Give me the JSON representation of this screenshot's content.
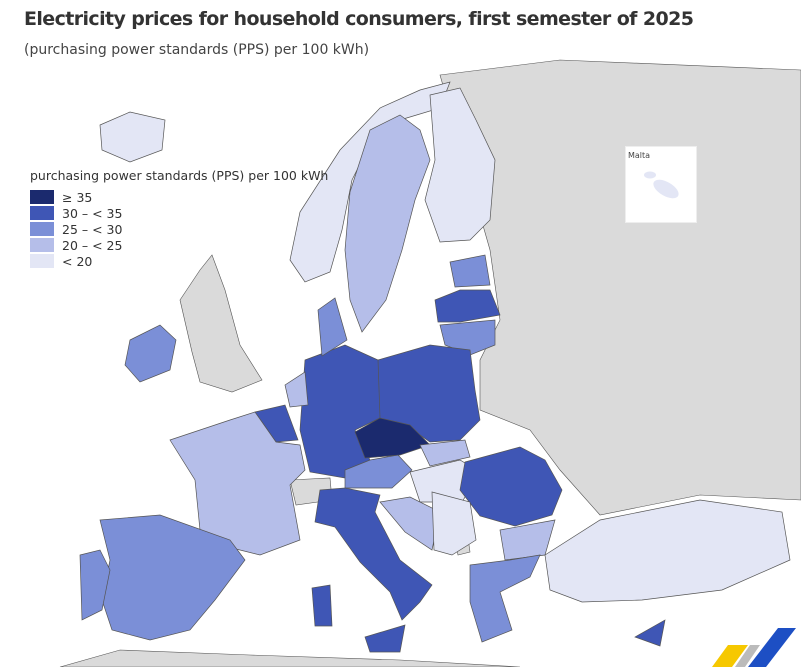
{
  "title": "Electricity prices for household consumers, first semester of 2025",
  "subtitle": "(purchasing power standards (PPS) per 100 kWh)",
  "legend": {
    "title": "purchasing power standards (PPS) per 100 kWh",
    "classes": [
      {
        "label": "≥ 35",
        "color": "#1b2a6e"
      },
      {
        "label": "30 – < 35",
        "color": "#3f56b5"
      },
      {
        "label": "25 – < 30",
        "color": "#7b8fd7"
      },
      {
        "label": "20 – < 25",
        "color": "#b5bee9"
      },
      {
        "label": "< 20",
        "color": "#e3e6f5"
      }
    ]
  },
  "inset": {
    "label": "Malta",
    "class": 4
  },
  "colors": {
    "no_data_land": "#dadada",
    "sea": "#ffffff",
    "border": "#555555"
  },
  "regions": [
    {
      "id": "IS",
      "class": 4
    },
    {
      "id": "NO",
      "class": 4
    },
    {
      "id": "SE",
      "class": 3
    },
    {
      "id": "FI",
      "class": 4
    },
    {
      "id": "IE",
      "class": 2
    },
    {
      "id": "EE",
      "class": 2
    },
    {
      "id": "LV",
      "class": 1
    },
    {
      "id": "LT",
      "class": 2
    },
    {
      "id": "PL",
      "class": 1
    },
    {
      "id": "DE",
      "class": 1
    },
    {
      "id": "DK",
      "class": 2
    },
    {
      "id": "NL",
      "class": 3
    },
    {
      "id": "BE",
      "class": 1
    },
    {
      "id": "FR",
      "class": 3
    },
    {
      "id": "ES",
      "class": 2
    },
    {
      "id": "PT",
      "class": 2
    },
    {
      "id": "AT",
      "class": 2
    },
    {
      "id": "CZ",
      "class": 0
    },
    {
      "id": "SK",
      "class": 3
    },
    {
      "id": "HU",
      "class": 4
    },
    {
      "id": "RO",
      "class": 1
    },
    {
      "id": "BG",
      "class": 3
    },
    {
      "id": "IT",
      "class": 1
    },
    {
      "id": "HR",
      "class": 3
    },
    {
      "id": "RS",
      "class": 4
    },
    {
      "id": "GR",
      "class": 2
    },
    {
      "id": "CY",
      "class": 1
    },
    {
      "id": "TR",
      "class": 4
    }
  ]
}
